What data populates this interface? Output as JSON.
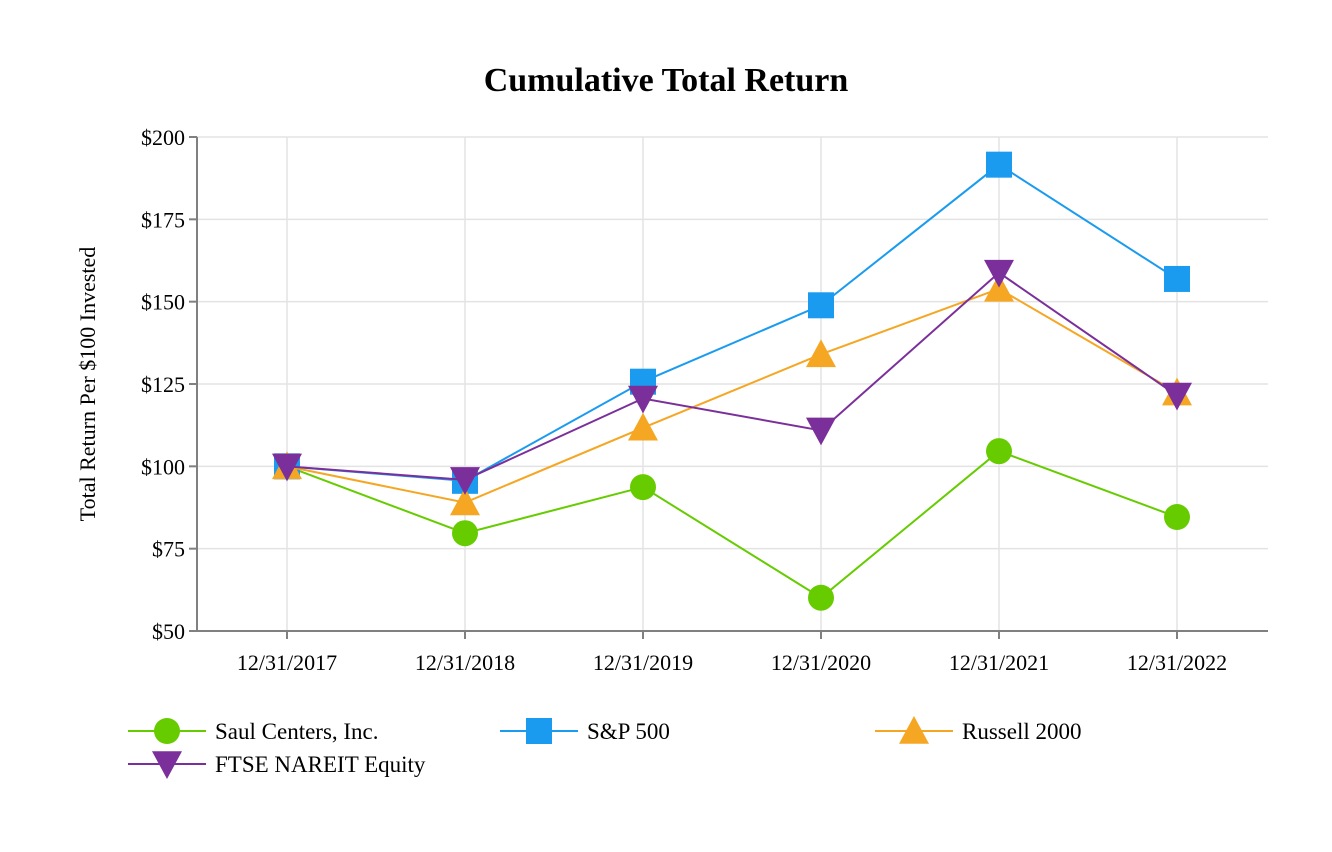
{
  "chart_data": {
    "type": "line",
    "title": "Cumulative Total Return",
    "xlabel": "",
    "ylabel": "Total Return Per $100 Invested",
    "categories": [
      "12/31/2017",
      "12/31/2018",
      "12/31/2019",
      "12/31/2020",
      "12/31/2021",
      "12/31/2022"
    ],
    "ylim": [
      50,
      200
    ],
    "yticks": [
      50,
      75,
      100,
      125,
      150,
      175,
      200
    ],
    "ytick_labels": [
      "$50",
      "$75",
      "$100",
      "$125",
      "$150",
      "$175",
      "$200"
    ],
    "grid": true,
    "legend_position": "bottom",
    "series": [
      {
        "name": "Saul Centers, Inc.",
        "values": [
          100,
          79.7,
          93.7,
          60.1,
          104.6,
          84.6
        ],
        "color": "#66cc00",
        "marker": "circle"
      },
      {
        "name": "S&P 500",
        "values": [
          100,
          95.6,
          125.7,
          148.9,
          191.6,
          156.9
        ],
        "color": "#1a9bf0",
        "marker": "square"
      },
      {
        "name": "Russell 2000",
        "values": [
          100,
          89.0,
          111.7,
          134.0,
          153.9,
          122.4
        ],
        "color": "#f5a623",
        "marker": "triangle-up"
      },
      {
        "name": "FTSE NAREIT Equity",
        "values": [
          100,
          95.9,
          120.6,
          110.9,
          158.8,
          121.5
        ],
        "color": "#7b2f9a",
        "marker": "triangle-down"
      }
    ]
  }
}
